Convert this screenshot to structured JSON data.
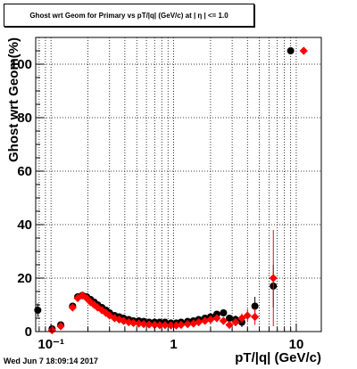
{
  "chart_data": {
    "type": "scatter",
    "title": "Ghost wrt Geom for Primary vs pT/|q| (GeV/c) at | η | <= 1.0",
    "xlabel": "pT/|q| (GeV/c)",
    "ylabel": "Ghost wrt Geom(%)",
    "xscale": "log",
    "xlim": [
      0.075,
      16
    ],
    "ylim": [
      0,
      110
    ],
    "x_tick_labels": [
      "10⁻¹",
      "1",
      "10"
    ],
    "y_tick_labels": [
      "0",
      "20",
      "40",
      "60",
      "80",
      "100"
    ],
    "grid": true,
    "series": [
      {
        "color": "#000000",
        "marker": "circle",
        "points": [
          {
            "x": 0.078,
            "y": 8.0,
            "err": 2.5
          },
          {
            "x": 0.102,
            "y": 1.0,
            "err": 0.5
          },
          {
            "x": 0.12,
            "y": 2.5,
            "err": 0.5
          },
          {
            "x": 0.15,
            "y": 9.5,
            "err": 0.6
          },
          {
            "x": 0.165,
            "y": 13.0,
            "err": 0.6
          },
          {
            "x": 0.18,
            "y": 13.5,
            "err": 0.6
          },
          {
            "x": 0.195,
            "y": 13.0,
            "err": 0.6
          },
          {
            "x": 0.21,
            "y": 12.0,
            "err": 0.5
          },
          {
            "x": 0.225,
            "y": 11.0,
            "err": 0.5
          },
          {
            "x": 0.24,
            "y": 10.0,
            "err": 0.5
          },
          {
            "x": 0.26,
            "y": 9.0,
            "err": 0.5
          },
          {
            "x": 0.28,
            "y": 8.0,
            "err": 0.5
          },
          {
            "x": 0.3,
            "y": 7.0,
            "err": 0.4
          },
          {
            "x": 0.33,
            "y": 6.0,
            "err": 0.4
          },
          {
            "x": 0.36,
            "y": 5.5,
            "err": 0.4
          },
          {
            "x": 0.39,
            "y": 5.0,
            "err": 0.4
          },
          {
            "x": 0.43,
            "y": 4.5,
            "err": 0.4
          },
          {
            "x": 0.47,
            "y": 4.0,
            "err": 0.4
          },
          {
            "x": 0.52,
            "y": 4.0,
            "err": 0.4
          },
          {
            "x": 0.57,
            "y": 3.8,
            "err": 0.4
          },
          {
            "x": 0.63,
            "y": 3.5,
            "err": 0.4
          },
          {
            "x": 0.7,
            "y": 3.5,
            "err": 0.4
          },
          {
            "x": 0.77,
            "y": 3.5,
            "err": 0.4
          },
          {
            "x": 0.85,
            "y": 3.5,
            "err": 0.4
          },
          {
            "x": 0.95,
            "y": 3.2,
            "err": 0.4
          },
          {
            "x": 1.05,
            "y": 3.2,
            "err": 0.4
          },
          {
            "x": 1.15,
            "y": 3.5,
            "err": 0.4
          },
          {
            "x": 1.3,
            "y": 3.8,
            "err": 0.5
          },
          {
            "x": 1.45,
            "y": 4.0,
            "err": 0.5
          },
          {
            "x": 1.6,
            "y": 4.5,
            "err": 0.5
          },
          {
            "x": 1.8,
            "y": 5.0,
            "err": 0.6
          },
          {
            "x": 2.0,
            "y": 5.5,
            "err": 0.7
          },
          {
            "x": 2.25,
            "y": 6.5,
            "err": 0.8
          },
          {
            "x": 2.55,
            "y": 7.0,
            "err": 1.0
          },
          {
            "x": 2.85,
            "y": 5.0,
            "err": 1.2
          },
          {
            "x": 3.2,
            "y": 4.5,
            "err": 1.5
          },
          {
            "x": 3.6,
            "y": 3.5,
            "err": 1.8
          },
          {
            "x": 4.6,
            "y": 9.5,
            "err": 3.5
          },
          {
            "x": 6.5,
            "y": 17.0,
            "err": 8.0
          },
          {
            "x": 9.0,
            "y": 105.0,
            "err": 0.0
          }
        ]
      },
      {
        "color": "#ff0000",
        "marker": "diamond",
        "points": [
          {
            "x": 0.102,
            "y": 0.5,
            "err": 0.4
          },
          {
            "x": 0.12,
            "y": 2.0,
            "err": 0.5
          },
          {
            "x": 0.15,
            "y": 9.0,
            "err": 0.6
          },
          {
            "x": 0.165,
            "y": 12.5,
            "err": 0.6
          },
          {
            "x": 0.18,
            "y": 13.5,
            "err": 0.6
          },
          {
            "x": 0.195,
            "y": 12.5,
            "err": 0.6
          },
          {
            "x": 0.21,
            "y": 11.0,
            "err": 0.5
          },
          {
            "x": 0.225,
            "y": 10.0,
            "err": 0.5
          },
          {
            "x": 0.24,
            "y": 9.0,
            "err": 0.5
          },
          {
            "x": 0.26,
            "y": 8.0,
            "err": 0.5
          },
          {
            "x": 0.28,
            "y": 7.0,
            "err": 0.4
          },
          {
            "x": 0.3,
            "y": 6.0,
            "err": 0.4
          },
          {
            "x": 0.33,
            "y": 5.0,
            "err": 0.4
          },
          {
            "x": 0.36,
            "y": 4.5,
            "err": 0.4
          },
          {
            "x": 0.39,
            "y": 4.0,
            "err": 0.4
          },
          {
            "x": 0.43,
            "y": 3.5,
            "err": 0.4
          },
          {
            "x": 0.47,
            "y": 3.2,
            "err": 0.4
          },
          {
            "x": 0.52,
            "y": 3.0,
            "err": 0.4
          },
          {
            "x": 0.57,
            "y": 2.8,
            "err": 0.4
          },
          {
            "x": 0.63,
            "y": 2.6,
            "err": 0.4
          },
          {
            "x": 0.7,
            "y": 2.5,
            "err": 0.4
          },
          {
            "x": 0.77,
            "y": 2.4,
            "err": 0.4
          },
          {
            "x": 0.85,
            "y": 2.4,
            "err": 0.4
          },
          {
            "x": 0.95,
            "y": 2.3,
            "err": 0.4
          },
          {
            "x": 1.05,
            "y": 2.3,
            "err": 0.4
          },
          {
            "x": 1.15,
            "y": 2.5,
            "err": 0.4
          },
          {
            "x": 1.3,
            "y": 2.8,
            "err": 0.5
          },
          {
            "x": 1.45,
            "y": 3.0,
            "err": 0.5
          },
          {
            "x": 1.6,
            "y": 3.5,
            "err": 0.5
          },
          {
            "x": 1.8,
            "y": 4.0,
            "err": 0.6
          },
          {
            "x": 2.0,
            "y": 4.5,
            "err": 0.7
          },
          {
            "x": 2.25,
            "y": 5.0,
            "err": 0.8
          },
          {
            "x": 2.55,
            "y": 4.0,
            "err": 1.0
          },
          {
            "x": 2.85,
            "y": 2.5,
            "err": 1.2
          },
          {
            "x": 3.2,
            "y": 3.5,
            "err": 1.5
          },
          {
            "x": 3.6,
            "y": 5.0,
            "err": 1.8
          },
          {
            "x": 4.0,
            "y": 6.0,
            "err": 2.5
          },
          {
            "x": 4.6,
            "y": 5.5,
            "err": 3.0
          },
          {
            "x": 6.5,
            "y": 20.0,
            "err": 18.0
          },
          {
            "x": 11.5,
            "y": 105.0,
            "err": 0.0
          }
        ]
      }
    ]
  },
  "footer": {
    "timestamp": "Wed Jun  7 18:09:14 2017"
  }
}
